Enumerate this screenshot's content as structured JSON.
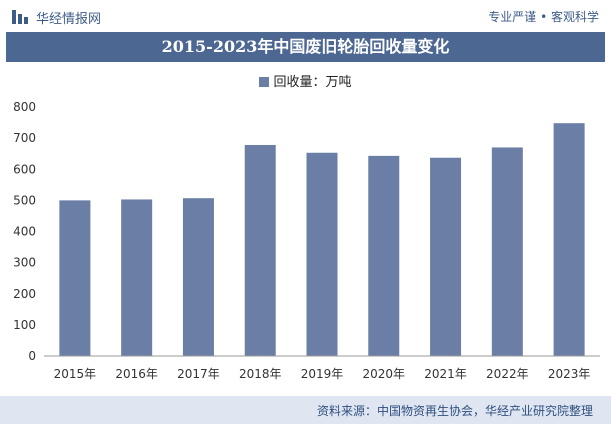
{
  "header": {
    "brand": "华经情报网",
    "slogan": "专业严谨 • 客观科学"
  },
  "title": "2015-2023年中国废旧轮胎回收量变化",
  "footer": {
    "source": "资料来源：中国物资再生协会，华经产业研究院整理"
  },
  "colors": {
    "bar": "#6b7fa6",
    "title_bg": "#4d6793",
    "footer_bg": "#dfe6f1"
  },
  "chart_data": {
    "type": "bar",
    "categories": [
      "2015年",
      "2016年",
      "2017年",
      "2018年",
      "2019年",
      "2020年",
      "2021年",
      "2022年",
      "2023年"
    ],
    "series": [
      {
        "name": "回收量：万吨",
        "values": [
          500,
          503,
          507,
          678,
          653,
          643,
          637,
          670,
          748
        ]
      }
    ],
    "ylim": [
      0,
      800
    ],
    "yticks": [
      "0",
      "100",
      "200",
      "300",
      "400",
      "500",
      "600",
      "700",
      "800"
    ],
    "legend": "top-center",
    "grid": false
  }
}
